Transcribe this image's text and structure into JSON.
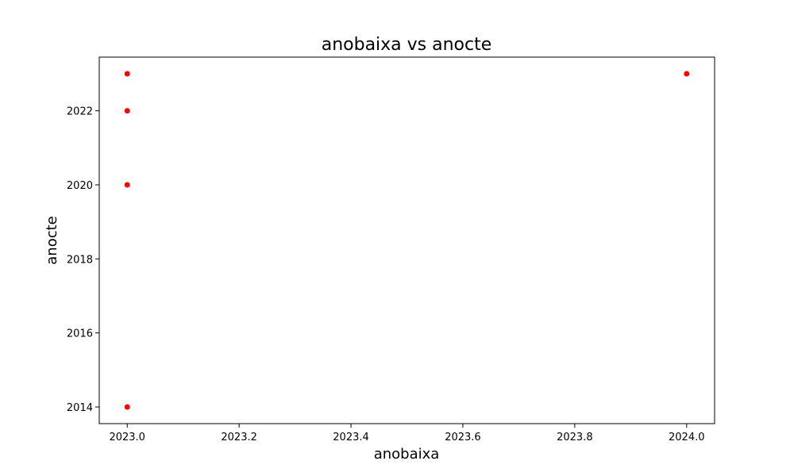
{
  "chart_data": {
    "type": "scatter",
    "title": "anobaixa vs anocte",
    "xlabel": "anobaixa",
    "ylabel": "anocte",
    "xlim": [
      2022.95,
      2024.05
    ],
    "ylim": [
      2013.55,
      2023.45
    ],
    "x_ticks": [
      2023.0,
      2023.2,
      2023.4,
      2023.6,
      2023.8,
      2024.0
    ],
    "x_tick_labels": [
      "2023.0",
      "2023.2",
      "2023.4",
      "2023.6",
      "2023.8",
      "2024.0"
    ],
    "y_ticks": [
      2014,
      2016,
      2018,
      2020,
      2022
    ],
    "y_tick_labels": [
      "2014",
      "2016",
      "2018",
      "2020",
      "2022"
    ],
    "grid": false,
    "marker_color": "#ff0000",
    "points": [
      {
        "x": 2023.0,
        "y": 2023
      },
      {
        "x": 2023.0,
        "y": 2022
      },
      {
        "x": 2023.0,
        "y": 2020
      },
      {
        "x": 2023.0,
        "y": 2014
      },
      {
        "x": 2024.0,
        "y": 2023
      }
    ]
  }
}
